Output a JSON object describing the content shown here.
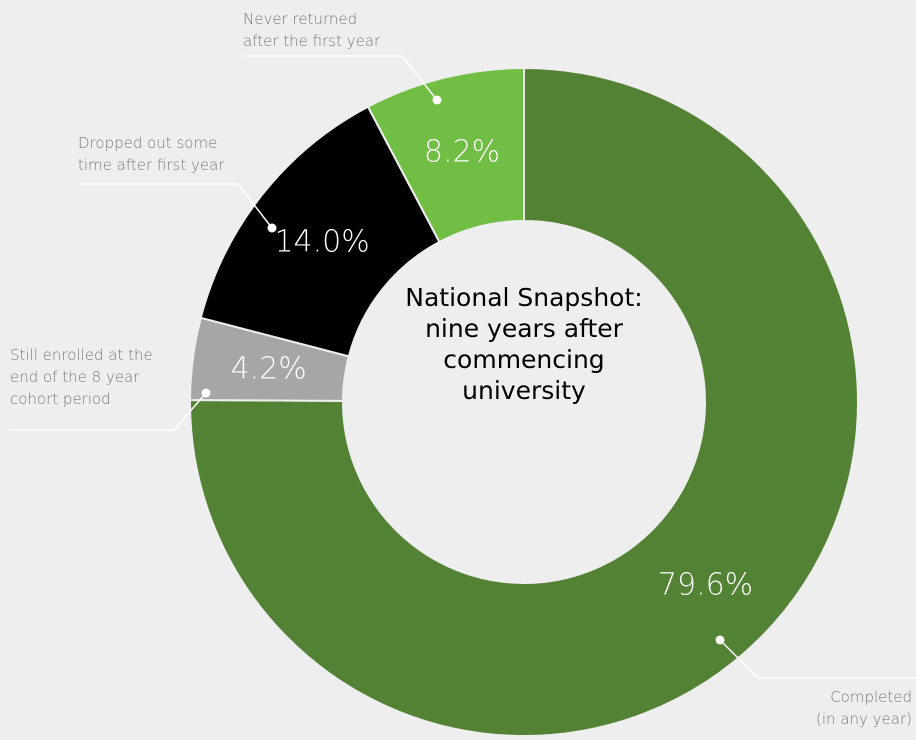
{
  "chart_data": {
    "type": "donut",
    "title": "National Snapshot:\nnine years after\ncommencing\nuniversity",
    "categories": [
      "Completed\n(in any year)",
      "Still enrolled at the\nend of the 8 year\ncohort period",
      "Dropped out some\ntime after first year",
      "Never returned\nafter the first year"
    ],
    "values": [
      79.6,
      4.2,
      14.0,
      8.2
    ],
    "value_labels": [
      "79.6%",
      "4.2%",
      "14.0%",
      "8.2%"
    ],
    "colors": [
      "#548235",
      "#a6a6a6",
      "#000000",
      "#70bf44"
    ]
  }
}
